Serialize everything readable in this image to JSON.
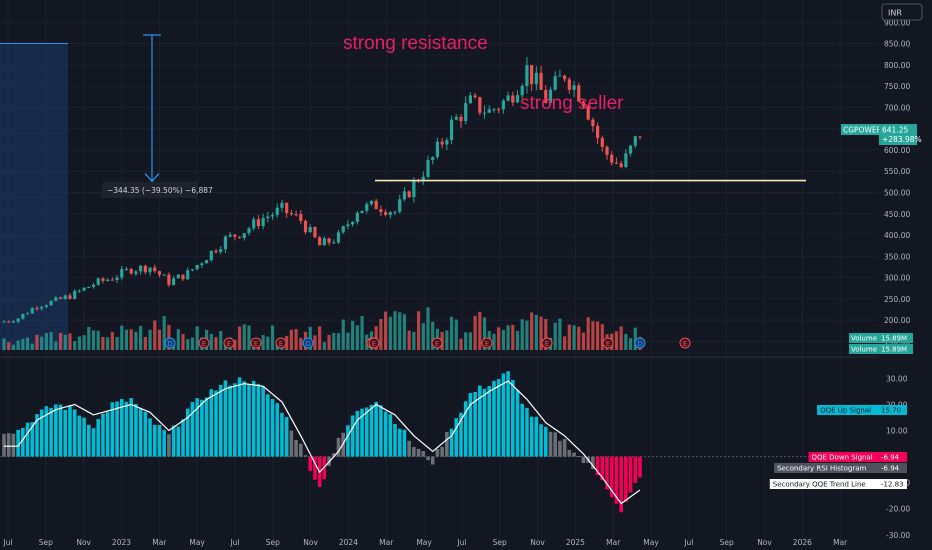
{
  "currency_label": "INR",
  "symbol": "CGPOWER",
  "last_price": "641.25",
  "change": "+283.98%",
  "annotations": {
    "resistance": "strong resistance",
    "seller": "strong seller",
    "measure": "−344.35 (−39.50%) −6,887"
  },
  "colors": {
    "background": "#131722",
    "up": "#26a69a",
    "down": "#ef5350",
    "annotation": "#e91e63",
    "support_line": "#f5e6b3",
    "qqe_up": "#00bcd4",
    "qqe_down": "#f50057",
    "qqe_neutral": "#6b6e75",
    "trend_line": "#ffffff",
    "measure": "#2196f3"
  },
  "price_axis": [
    "900.00",
    "850.00",
    "800.00",
    "750.00",
    "700.00",
    "650.00",
    "600.00",
    "550.00",
    "500.00",
    "450.00",
    "400.00",
    "350.00",
    "300.00",
    "250.00",
    "200.00",
    "150.00"
  ],
  "osc_axis": [
    "30.00",
    "20.00",
    "10.00",
    "0.00",
    "-10.00",
    "-20.00",
    "-30.00"
  ],
  "time_axis": [
    "Jul",
    "Sep",
    "Nov",
    "2023",
    "Mar",
    "May",
    "Jul",
    "Sep",
    "Nov",
    "2024",
    "Mar",
    "May",
    "Jul",
    "Sep",
    "Nov",
    "2025",
    "Mar",
    "May",
    "Jul",
    "Sep",
    "Nov",
    "2026",
    "Mar"
  ],
  "volume_labels": [
    {
      "name": "Volume",
      "value": "15.89M"
    },
    {
      "name": "Volume",
      "value": "15.89M"
    }
  ],
  "osc_labels": [
    {
      "name": "QQE Up Signal",
      "value": "15.70"
    },
    {
      "name": "QQE Down Signal",
      "value": "-6.94"
    },
    {
      "name": "Secondary RSI Histogram",
      "value": "-6.94"
    },
    {
      "name": "Secondary QQE Trend Line",
      "value": "-12.83"
    }
  ],
  "event_markers": [
    "D",
    "E",
    "E",
    "E",
    "E",
    "D",
    "E",
    "E",
    "E",
    "E",
    "E",
    "E",
    "D",
    "E"
  ],
  "chart_data": [
    {
      "type": "candlestick",
      "x": [
        "2022-06",
        "2022-07",
        "2022-08",
        "2022-09",
        "2022-10",
        "2022-11",
        "2022-12",
        "2023-01",
        "2023-02",
        "2023-03",
        "2023-04",
        "2023-05",
        "2023-06",
        "2023-07",
        "2023-08",
        "2023-09",
        "2023-10",
        "2023-11",
        "2023-12",
        "2024-01",
        "2024-02",
        "2024-03",
        "2024-04",
        "2024-05",
        "2024-06",
        "2024-07",
        "2024-08",
        "2024-09",
        "2024-10",
        "2024-11",
        "2024-12",
        "2025-01",
        "2025-02",
        "2025-03"
      ],
      "close": [
        205,
        235,
        245,
        262,
        285,
        300,
        320,
        325,
        290,
        310,
        350,
        390,
        410,
        440,
        460,
        435,
        375,
        395,
        460,
        470,
        455,
        520,
        580,
        660,
        710,
        690,
        720,
        790,
        720,
        780,
        720,
        600,
        560,
        641.25
      ],
      "ylim": [
        130,
        910
      ],
      "support_level": 528,
      "measure": {
        "from": 870,
        "to": 526,
        "change": -344.35,
        "percent": -39.5
      }
    },
    {
      "type": "bar",
      "name": "Volume",
      "values": [
        4,
        5,
        6,
        5,
        7,
        6,
        8,
        9,
        14,
        6,
        7,
        6,
        8,
        9,
        7,
        8,
        10,
        6,
        9,
        12,
        13,
        11,
        14,
        10,
        9,
        11,
        8,
        10,
        12,
        9,
        11,
        15.89,
        10,
        8
      ],
      "value_unit": "M"
    },
    {
      "type": "bar",
      "name": "QQE Histogram",
      "values": [
        10,
        16,
        20,
        18,
        12,
        20,
        22,
        14,
        8,
        18,
        24,
        28,
        30,
        26,
        18,
        4,
        -12,
        6,
        18,
        22,
        14,
        4,
        -2,
        12,
        24,
        28,
        32,
        18,
        10,
        6,
        -2,
        -8,
        -22,
        -6.94
      ],
      "trend_line": [
        4,
        14,
        18,
        20,
        16,
        18,
        20,
        17,
        10,
        15,
        22,
        26,
        28,
        27,
        21,
        8,
        -6,
        2,
        14,
        20,
        16,
        8,
        2,
        8,
        20,
        25,
        29,
        22,
        13,
        8,
        1,
        -8,
        -18,
        -12.83
      ],
      "ylim": [
        -32,
        34
      ]
    }
  ]
}
